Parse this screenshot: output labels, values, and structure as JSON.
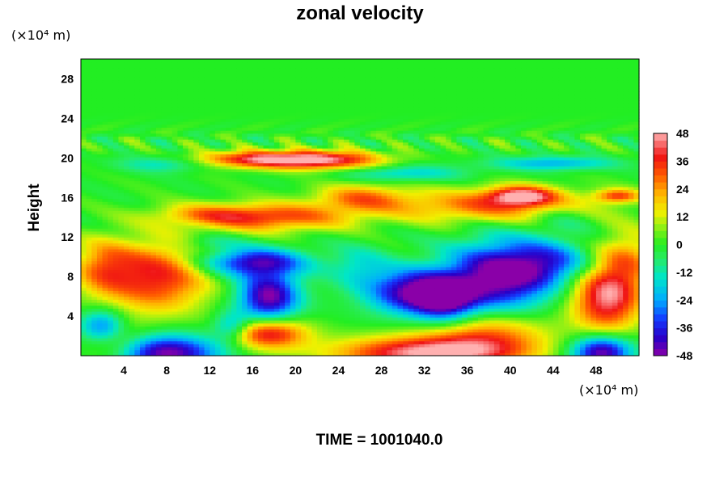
{
  "chart_data": {
    "type": "heatmap",
    "title": "zonal velocity",
    "ylabel": "Height",
    "xlabel": "",
    "x_unit": "(×10⁴ m)",
    "y_unit": "(×10⁴ m)",
    "xlim": [
      0,
      52
    ],
    "ylim": [
      0,
      30
    ],
    "x_ticks": [
      4,
      8,
      12,
      16,
      20,
      24,
      28,
      32,
      36,
      40,
      44,
      48
    ],
    "y_ticks": [
      4,
      8,
      12,
      16,
      20,
      24,
      28
    ],
    "colorbar": {
      "ticks": [
        48,
        36,
        24,
        12,
        0,
        -12,
        -24,
        -36,
        -48
      ],
      "range": [
        -48,
        48
      ],
      "position": "right"
    },
    "footer": "TIME = 1001040.0",
    "features": [
      {
        "x": 17,
        "y": 19.9,
        "sx": 5,
        "sy": 0.6,
        "value": 40
      },
      {
        "x": 23,
        "y": 19.8,
        "sx": 4,
        "sy": 0.7,
        "value": 30
      },
      {
        "x": 38,
        "y": 15.2,
        "sx": 7,
        "sy": 1.2,
        "value": 28
      },
      {
        "x": 41,
        "y": 16.2,
        "sx": 2.2,
        "sy": 0.7,
        "value": 40
      },
      {
        "x": 50,
        "y": 16.2,
        "sx": 1.5,
        "sy": 0.5,
        "value": 30
      },
      {
        "x": 18,
        "y": 14,
        "sx": 5,
        "sy": 1,
        "value": 30
      },
      {
        "x": 26,
        "y": 16,
        "sx": 3,
        "sy": 1,
        "value": 24
      },
      {
        "x": 12,
        "y": 14.3,
        "sx": 4,
        "sy": 0.8,
        "value": 18
      },
      {
        "x": 7,
        "y": 8,
        "sx": 3.5,
        "sy": 2.5,
        "value": 38
      },
      {
        "x": 2,
        "y": 9,
        "sx": 2,
        "sy": 2,
        "value": 22
      },
      {
        "x": 17.5,
        "y": 2.3,
        "sx": 2.5,
        "sy": 1.1,
        "value": 42
      },
      {
        "x": 32,
        "y": 0.3,
        "sx": 6,
        "sy": 1.2,
        "value": 46
      },
      {
        "x": 38,
        "y": 2.2,
        "sx": 4,
        "sy": 1.8,
        "value": 28
      },
      {
        "x": 49,
        "y": 6,
        "sx": 2.3,
        "sy": 2.5,
        "value": 46
      },
      {
        "x": 51,
        "y": 10,
        "sx": 2,
        "sy": 2,
        "value": 20
      },
      {
        "x": 3,
        "y": 1.2,
        "sx": 2,
        "sy": 1.5,
        "value": 18
      },
      {
        "x": 17.5,
        "y": 6,
        "sx": 2,
        "sy": 1.8,
        "value": -48
      },
      {
        "x": 16,
        "y": 9.5,
        "sx": 3.5,
        "sy": 1,
        "value": -40
      },
      {
        "x": 39,
        "y": 8,
        "sx": 3.5,
        "sy": 2.5,
        "value": -50
      },
      {
        "x": 44,
        "y": 9.5,
        "sx": 3,
        "sy": 1.5,
        "value": -25
      },
      {
        "x": 31,
        "y": 6.5,
        "sx": 3,
        "sy": 1.6,
        "value": -45
      },
      {
        "x": 34,
        "y": 5.5,
        "sx": 2,
        "sy": 1.5,
        "value": -35
      },
      {
        "x": 8,
        "y": 0.3,
        "sx": 3.5,
        "sy": 1.3,
        "value": -48
      },
      {
        "x": 48.5,
        "y": 0.4,
        "sx": 2,
        "sy": 1.2,
        "value": -50
      },
      {
        "x": 2,
        "y": 3,
        "sx": 1.5,
        "sy": 1.2,
        "value": -32
      },
      {
        "x": 14,
        "y": 3,
        "sx": 1.2,
        "sy": 1,
        "value": -22
      },
      {
        "x": 26,
        "y": 9,
        "sx": 2,
        "sy": 1.5,
        "value": -14
      },
      {
        "x": 12,
        "y": 11.5,
        "sx": 2,
        "sy": 0.6,
        "value": -10
      },
      {
        "x": 45,
        "y": 14,
        "sx": 2,
        "sy": 1,
        "value": -10
      },
      {
        "x": 30,
        "y": 18.5,
        "sx": 4,
        "sy": 0.6,
        "value": -18
      },
      {
        "x": 44,
        "y": 19.5,
        "sx": 4,
        "sy": 0.5,
        "value": -22
      },
      {
        "x": 8,
        "y": 19.5,
        "sx": 3,
        "sy": 0.6,
        "value": -18
      }
    ]
  },
  "colors": {
    "scale_low": "#8a00a8",
    "scale_high": "#ffb0b0",
    "upper_layer": "#22ee22"
  }
}
